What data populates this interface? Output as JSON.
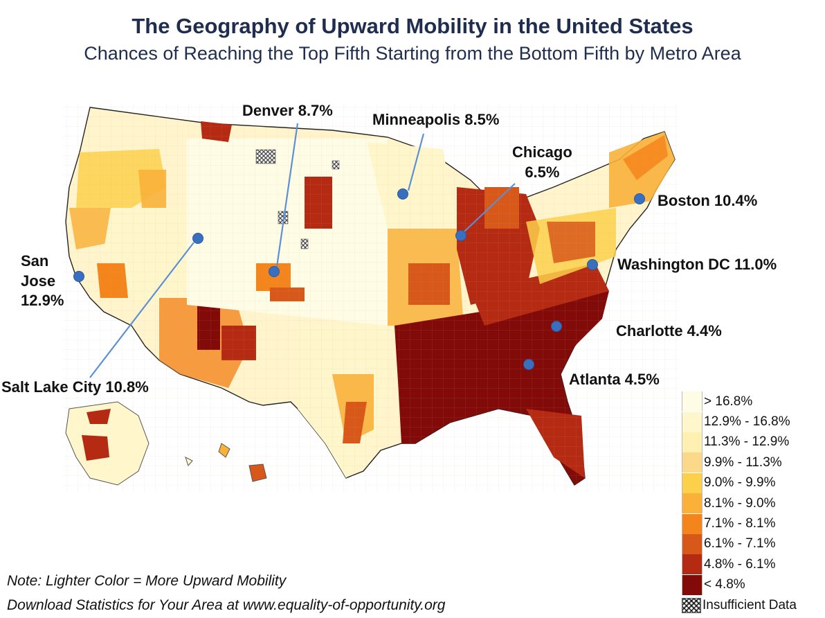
{
  "title": "The Geography of Upward Mobility in the United States",
  "subtitle": "Chances of Reaching the Top Fifth Starting from the Bottom Fifth by Metro Area",
  "cities": [
    {
      "id": "san-jose",
      "label": "San\nJose\n12.9%"
    },
    {
      "id": "salt-lake-city",
      "label": "Salt Lake City 10.8%"
    },
    {
      "id": "denver",
      "label": "Denver 8.7%"
    },
    {
      "id": "minneapolis",
      "label": "Minneapolis 8.5%"
    },
    {
      "id": "chicago",
      "label": "Chicago\n6.5%"
    },
    {
      "id": "boston",
      "label": "Boston 10.4%"
    },
    {
      "id": "washington-dc",
      "label": "Washington DC 11.0%"
    },
    {
      "id": "charlotte",
      "label": "Charlotte 4.4%"
    },
    {
      "id": "atlanta",
      "label": "Atlanta 4.5%"
    }
  ],
  "legend": [
    {
      "label": "> 16.8%",
      "color": "#fffce6"
    },
    {
      "label": "12.9% - 16.8%",
      "color": "#fff6cc"
    },
    {
      "label": "11.3% - 12.9%",
      "color": "#ffefb0"
    },
    {
      "label": "9.9% - 11.3%",
      "color": "#fcd98a"
    },
    {
      "label": "9.0% - 9.9%",
      "color": "#fcd04a"
    },
    {
      "label": "8.1% - 9.0%",
      "color": "#f9b13a"
    },
    {
      "label": "7.1% - 8.1%",
      "color": "#f4841c"
    },
    {
      "label": "6.1% - 7.1%",
      "color": "#d8581a"
    },
    {
      "label": "4.8% - 6.1%",
      "color": "#b52a12"
    },
    {
      "label": "< 4.8%",
      "color": "#820a08"
    },
    {
      "label": "Insufficient Data",
      "color": "hatch"
    }
  ],
  "notes": [
    "Note: Lighter Color = More Upward Mobility",
    "Download Statistics for Your Area at www.equality-of-opportunity.org"
  ],
  "colors": {
    "title": "#1f2d4e",
    "marker": "#3a6fbf",
    "pointer": "#5b8fd6"
  }
}
